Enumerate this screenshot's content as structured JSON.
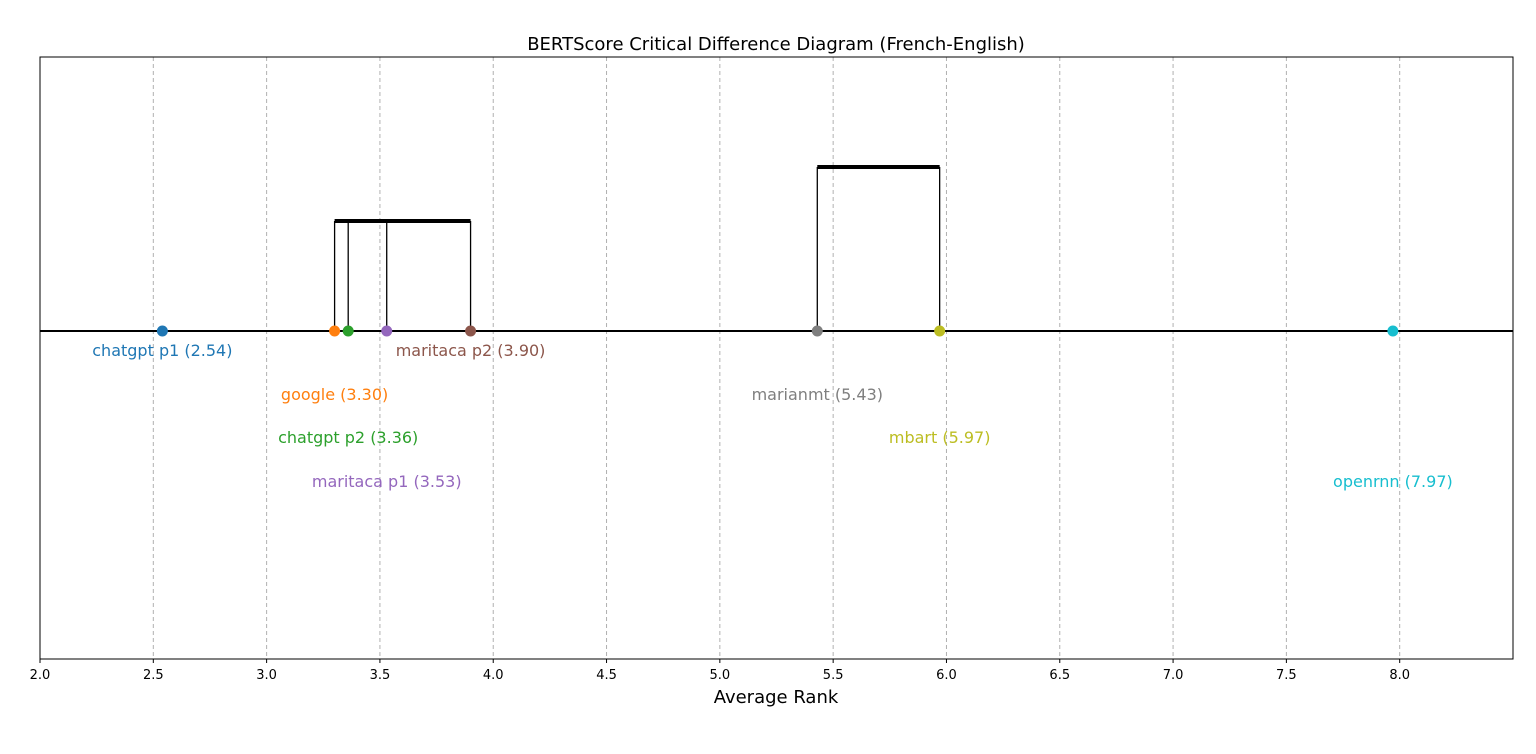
{
  "chart_data": {
    "type": "scatter",
    "title": "BERTScore Critical Difference Diagram (French-English)",
    "xlabel": "Average Rank",
    "xlim": [
      2.0,
      8.5
    ],
    "xticks": [
      "2.0",
      "2.5",
      "3.0",
      "3.5",
      "4.0",
      "4.5",
      "5.0",
      "5.5",
      "6.0",
      "6.5",
      "7.0",
      "7.5",
      "8.0"
    ],
    "grid": "vertical dashed",
    "models": [
      {
        "label": "chatgpt p1 (2.54)",
        "rank": 2.54,
        "color": "#1f77b4",
        "row": 1
      },
      {
        "label": "google (3.30)",
        "rank": 3.3,
        "color": "#ff7f0e",
        "row": 2
      },
      {
        "label": "chatgpt p2 (3.36)",
        "rank": 3.36,
        "color": "#2ca02c",
        "row": 3
      },
      {
        "label": "maritaca p1 (3.53)",
        "rank": 3.53,
        "color": "#9467bd",
        "row": 4
      },
      {
        "label": "maritaca p2 (3.90)",
        "rank": 3.9,
        "color": "#8c564b",
        "row": 1
      },
      {
        "label": "marianmt (5.43)",
        "rank": 5.43,
        "color": "#7f7f7f",
        "row": 2
      },
      {
        "label": "mbart (5.97)",
        "rank": 5.97,
        "color": "#bcbd22",
        "row": 3
      },
      {
        "label": "openrnn (7.97)",
        "rank": 7.97,
        "color": "#17becf",
        "row": 4
      }
    ],
    "cliques": [
      {
        "from": 3.3,
        "to": 3.9,
        "members": [
          3.3,
          3.36,
          3.53,
          3.9
        ],
        "level": 1
      },
      {
        "from": 5.43,
        "to": 5.97,
        "members": [
          5.43,
          5.97
        ],
        "level": 2
      }
    ]
  }
}
